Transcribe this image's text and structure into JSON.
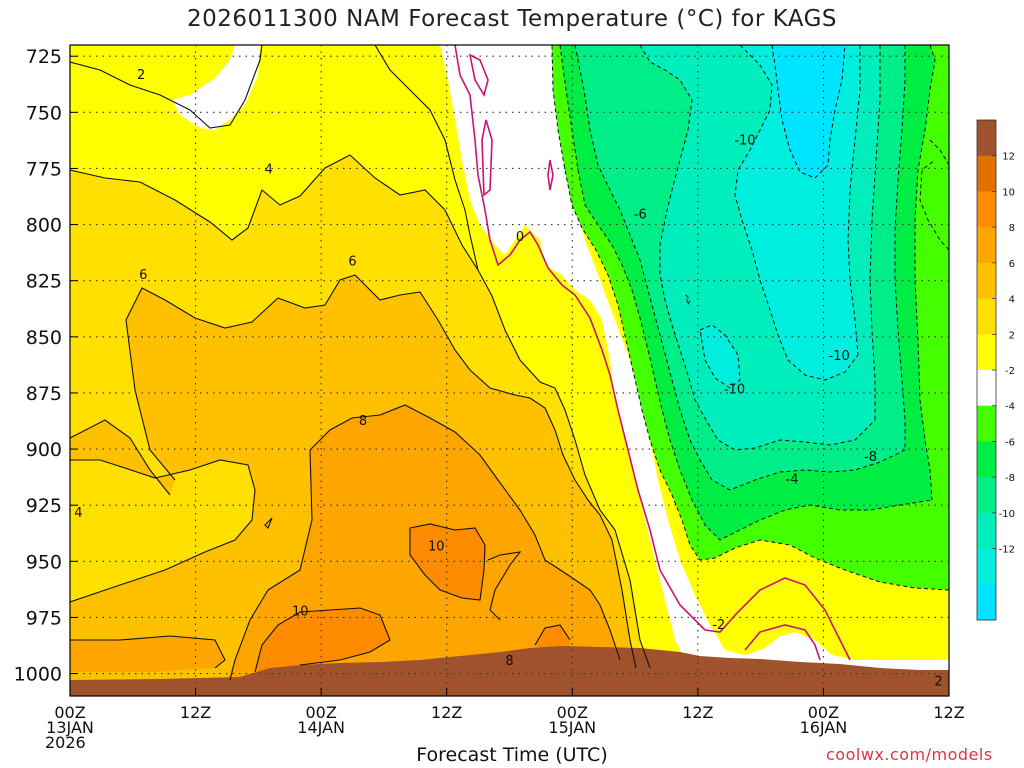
{
  "chart_data": {
    "type": "heatmap",
    "title": "2026011300 NAM Forecast Temperature (°C) for KAGS",
    "xlabel": "Forecast Time (UTC)",
    "ylabel": "",
    "credit": "coolwx.com/models",
    "y_ticks": [
      725,
      750,
      775,
      800,
      825,
      850,
      875,
      900,
      925,
      950,
      975,
      1000
    ],
    "y_range_hpa": [
      1010,
      720
    ],
    "x_range_hours": [
      0,
      84
    ],
    "x_ticks": [
      {
        "hour": 0,
        "line1": "00Z",
        "line2": "13JAN",
        "line3": "2026"
      },
      {
        "hour": 12,
        "line1": "12Z",
        "line2": "",
        "line3": ""
      },
      {
        "hour": 24,
        "line1": "00Z",
        "line2": "14JAN",
        "line3": ""
      },
      {
        "hour": 36,
        "line1": "12Z",
        "line2": "",
        "line3": ""
      },
      {
        "hour": 48,
        "line1": "00Z",
        "line2": "15JAN",
        "line3": ""
      },
      {
        "hour": 60,
        "line1": "12Z",
        "line2": "",
        "line3": ""
      },
      {
        "hour": 72,
        "line1": "00Z",
        "line2": "16JAN",
        "line3": ""
      },
      {
        "hour": 84,
        "line1": "12Z",
        "line2": "",
        "line3": ""
      }
    ],
    "grid": true,
    "colorbar": {
      "position": "right",
      "labels": [
        "12",
        "10",
        "8",
        "6",
        "4",
        "2",
        "-2",
        "-4",
        "-6",
        "-8",
        "-10",
        "-12"
      ],
      "colors": [
        "#a0522d",
        "#e07000",
        "#ff8c00",
        "#ffa500",
        "#ffc000",
        "#ffe000",
        "#ffff00",
        "#ffffff",
        "#44ff00",
        "#00ee44",
        "#00ee88",
        "#00eebb",
        "#00eedd",
        "#00e5ff"
      ]
    },
    "contour_labels": [
      {
        "text": "2",
        "hour": 6.8,
        "hpa": 733
      },
      {
        "text": "4",
        "hour": 19,
        "hpa": 775
      },
      {
        "text": "6",
        "hour": 7,
        "hpa": 822
      },
      {
        "text": "6",
        "hour": 27,
        "hpa": 816
      },
      {
        "text": "8",
        "hour": 28,
        "hpa": 887
      },
      {
        "text": "4",
        "hour": 0.8,
        "hpa": 928
      },
      {
        "text": "10",
        "hour": 35,
        "hpa": 943
      },
      {
        "text": "10",
        "hour": 22,
        "hpa": 972
      },
      {
        "text": "8",
        "hour": 42,
        "hpa": 994
      },
      {
        "text": "0",
        "hour": 43,
        "hpa": 805
      },
      {
        "text": "-10",
        "hour": 64.5,
        "hpa": 762
      },
      {
        "text": "-6",
        "hour": 54.5,
        "hpa": 795
      },
      {
        "text": "-10",
        "hour": 73.5,
        "hpa": 858
      },
      {
        "text": "-10",
        "hour": 63.5,
        "hpa": 873
      },
      {
        "text": "-8",
        "hour": 76.5,
        "hpa": 903
      },
      {
        "text": "-4",
        "hour": 69,
        "hpa": 913
      },
      {
        "text": "-2",
        "hour": 62,
        "hpa": 978
      },
      {
        "text": "2",
        "hour": 83,
        "hpa": 1003
      }
    ]
  }
}
